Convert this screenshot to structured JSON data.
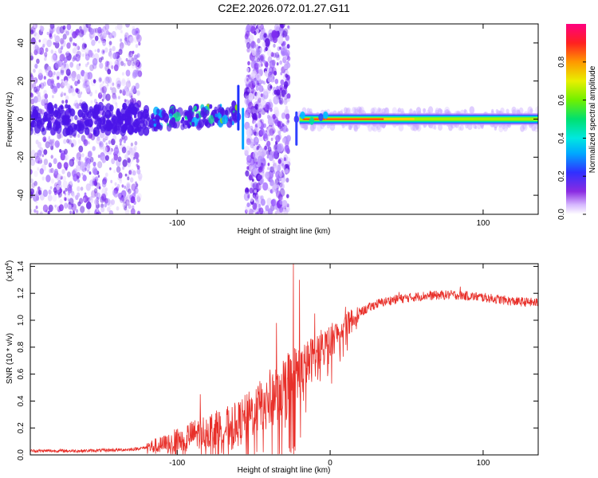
{
  "title": "C2E2.2026.072.01.27.G11",
  "chart_data": [
    {
      "type": "heatmap",
      "xlabel": "Height of straight line (km)",
      "ylabel": "Frequency (Hz)",
      "xlim": [
        -196,
        136
      ],
      "ylim": [
        -50,
        50
      ],
      "xticks": [
        -100,
        0,
        100
      ],
      "xtick_labels": [
        "-100",
        "",
        "100"
      ],
      "yticks": [
        -40,
        -20,
        0,
        20,
        40
      ],
      "ytick_labels": [
        "-40",
        "-20",
        "0",
        "20",
        "40"
      ],
      "colorbar": {
        "label": "Normalized spectral amplitude",
        "range": [
          0,
          1
        ],
        "ticks": [
          0.0,
          0.2,
          0.4,
          0.6,
          0.8
        ],
        "tick_labels": [
          "0.0",
          "0.2",
          "0.4",
          "0.6",
          "0.8"
        ]
      },
      "features": {
        "noise_region_1_x": [
          -196,
          -124
        ],
        "noise_region_2_x": [
          -55,
          -27
        ],
        "signal_band_x": [
          -20,
          136
        ],
        "signal_center_hz": 0
      },
      "grid": false
    },
    {
      "type": "line",
      "xlabel": "Height of straight line (km)",
      "ylabel": "SNR (10 * v/v)",
      "scale_label": "(x10",
      "scale_exponent": "4",
      "scale_suffix": ")",
      "xlim": [
        -196,
        136
      ],
      "ylim": [
        0,
        1.42
      ],
      "xticks": [
        -100,
        0,
        100
      ],
      "xtick_labels": [
        "-100",
        "0",
        "100"
      ],
      "yticks": [
        0.0,
        0.2,
        0.4,
        0.6,
        0.8,
        1.0,
        1.2,
        1.4
      ],
      "ytick_labels": [
        "0.0",
        "0.2",
        "0.4",
        "0.6",
        "0.8",
        "1.0",
        "1.2",
        "1.4"
      ],
      "series": [
        {
          "color": "#e8302a",
          "envelope": [
            [
              -196,
              0.03
            ],
            [
              -160,
              0.03
            ],
            [
              -130,
              0.04
            ],
            [
              -110,
              0.07
            ],
            [
              -100,
              0.11
            ],
            [
              -90,
              0.15
            ],
            [
              -80,
              0.18
            ],
            [
              -70,
              0.2
            ],
            [
              -60,
              0.23
            ],
            [
              -50,
              0.32
            ],
            [
              -40,
              0.42
            ],
            [
              -30,
              0.52
            ],
            [
              -20,
              0.6
            ],
            [
              -10,
              0.74
            ],
            [
              0,
              0.84
            ],
            [
              10,
              0.96
            ],
            [
              20,
              1.06
            ],
            [
              30,
              1.12
            ],
            [
              40,
              1.15
            ],
            [
              60,
              1.18
            ],
            [
              80,
              1.19
            ],
            [
              100,
              1.17
            ],
            [
              120,
              1.14
            ],
            [
              136,
              1.13
            ]
          ],
          "peaks": [
            [
              -85,
              0.45
            ],
            [
              -62,
              0.36
            ],
            [
              -35,
              0.98
            ],
            [
              -24,
              1.42
            ],
            [
              -20,
              1.3
            ],
            [
              -10,
              1.05
            ],
            [
              10,
              1.1
            ],
            [
              45,
              1.21
            ],
            [
              85,
              1.25
            ]
          ]
        }
      ],
      "grid": false
    }
  ]
}
